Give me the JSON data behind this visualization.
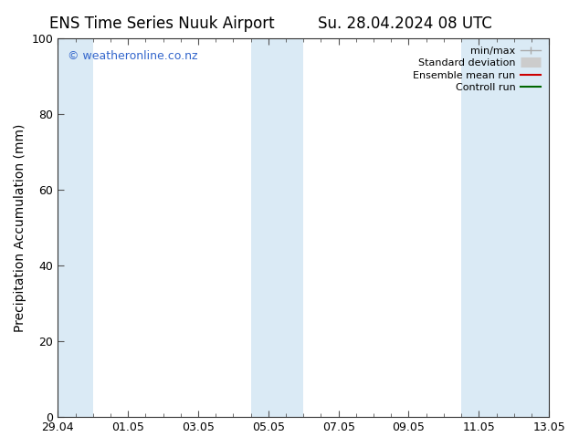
{
  "title_left": "ENS Time Series Nuuk Airport",
  "title_right": "Su. 28.04.2024 08 UTC",
  "ylabel": "Precipitation Accumulation (mm)",
  "ylim": [
    0,
    100
  ],
  "yticks": [
    0,
    20,
    40,
    60,
    80,
    100
  ],
  "background_color": "#ffffff",
  "plot_bg_color": "#ffffff",
  "watermark": "© weatheronline.co.nz",
  "watermark_color": "#3366cc",
  "shaded_color": "#daeaf5",
  "shaded_regions": [
    {
      "x_start": 0.0,
      "x_end": 1.0
    },
    {
      "x_start": 5.5,
      "x_end": 7.0
    },
    {
      "x_start": 11.5,
      "x_end": 14.0
    }
  ],
  "xtick_labels": [
    "29.04",
    "01.05",
    "03.05",
    "05.05",
    "07.05",
    "09.05",
    "11.05",
    "13.05"
  ],
  "xtick_positions": [
    0,
    2,
    4,
    6,
    8,
    10,
    12,
    14
  ],
  "x_min": 0,
  "x_max": 14,
  "legend_entries": [
    {
      "label": "min/max",
      "type": "minmax",
      "color": "#aaaaaa"
    },
    {
      "label": "Standard deviation",
      "type": "stddev",
      "color": "#cccccc"
    },
    {
      "label": "Ensemble mean run",
      "type": "line",
      "color": "#cc0000"
    },
    {
      "label": "Controll run",
      "type": "line",
      "color": "#006600"
    }
  ],
  "title_fontsize": 12,
  "axis_fontsize": 10,
  "tick_fontsize": 9,
  "legend_fontsize": 8
}
